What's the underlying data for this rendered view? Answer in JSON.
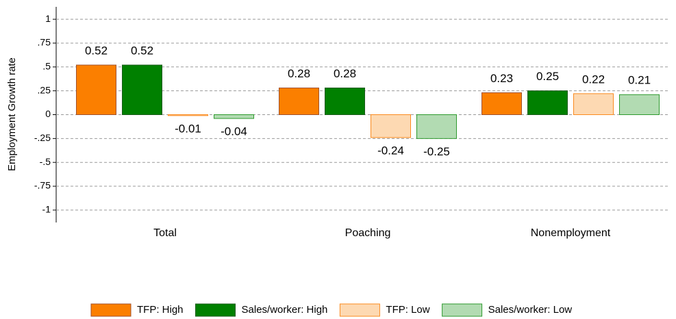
{
  "chart_data": {
    "type": "bar",
    "y_label": "Employment Growth rate",
    "categories": [
      "Total",
      "Poaching",
      "Nonemployment"
    ],
    "series": [
      {
        "name": "TFP: High",
        "color": "#fb7f00",
        "edge": "#a0522d",
        "values": [
          0.52,
          0.28,
          0.23
        ]
      },
      {
        "name": "Sales/worker: High",
        "color": "#008000",
        "edge": "#1a5c1a",
        "values": [
          0.52,
          0.28,
          0.25
        ]
      },
      {
        "name": "TFP: Low",
        "color": "#fdd9b2",
        "edge": "#fb8a1e",
        "values": [
          -0.01,
          -0.24,
          0.22
        ]
      },
      {
        "name": "Sales/worker: Low",
        "color": "#b2dbb2",
        "edge": "#2e9a2e",
        "values": [
          -0.04,
          -0.25,
          0.21
        ]
      }
    ],
    "ylim": [
      -1.13,
      1.13
    ],
    "yticks": [
      1,
      {
        "value": 0.75,
        "label": ".75"
      },
      {
        "value": 0.5,
        "label": ".5"
      },
      {
        "value": 0.25,
        "label": ".25"
      },
      0,
      {
        "value": -0.25,
        "label": "-.25"
      },
      {
        "value": -0.5,
        "label": "-.5"
      },
      {
        "value": -0.75,
        "label": "-.75"
      },
      -1
    ],
    "grid": true,
    "legend": "bottom"
  }
}
